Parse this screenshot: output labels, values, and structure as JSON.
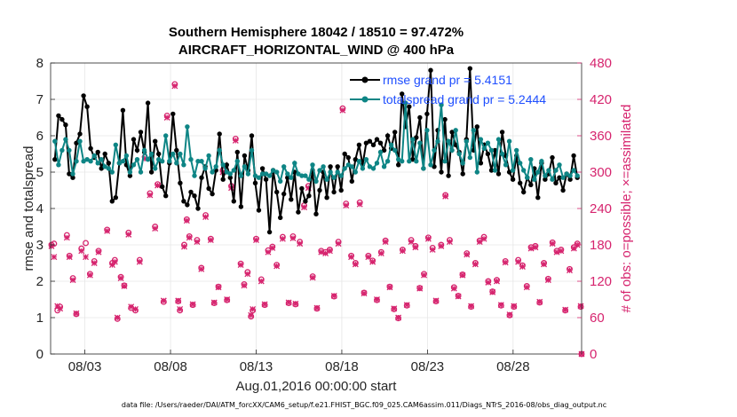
{
  "chart_data": {
    "type": "line",
    "title_line1": "Southern Hemisphere 18042 / 18510 = 97.472%",
    "title_line2": "AIRCRAFT_HORIZONTAL_WIND @ 400 hPa",
    "xlabel": "Aug.01,2016 00:00:00 start",
    "ylabel_left": "rmse and totalspread",
    "ylabel_right": "# of obs: o=possible; ×=assimilated",
    "footer": "data file: /Users/raeder/DAI/ATM_forcXX/CAM6_setup/f.e21.FHIST_BGC.f09_025.CAM6assim.011/Diags_NTrS_2016-08/obs_diag_output.nc",
    "xlim": [
      1.0,
      32.0
    ],
    "ylim_left": [
      0,
      8
    ],
    "ylim_right": [
      0,
      480
    ],
    "x_ticks": [
      {
        "x": 3,
        "label": "08/03"
      },
      {
        "x": 8,
        "label": "08/08"
      },
      {
        "x": 13,
        "label": "08/13"
      },
      {
        "x": 18,
        "label": "08/18"
      },
      {
        "x": 23,
        "label": "08/23"
      },
      {
        "x": 28,
        "label": "08/28"
      }
    ],
    "y_ticks_left": [
      "0",
      "1",
      "2",
      "3",
      "4",
      "5",
      "6",
      "7",
      "8"
    ],
    "y_ticks_right": [
      "0",
      "60",
      "120",
      "180",
      "240",
      "300",
      "360",
      "420",
      "480"
    ],
    "colors": {
      "rmse": "#000000",
      "totalspread": "#0e8585",
      "obs": "#d6246e",
      "legend_text": "#1f4fff",
      "grid": "#e6e6e6"
    },
    "series": [
      {
        "name": "rmse grand pr = 5.4151",
        "axis": "left",
        "values": [
          5.35,
          6.55,
          6.45,
          6.3,
          4.95,
          4.85,
          5.8,
          6.05,
          7.1,
          6.8,
          5.65,
          5.4,
          5.55,
          5.1,
          5.5,
          5.25,
          4.2,
          4.3,
          5.25,
          6.7,
          5.2,
          4.9,
          5.9,
          5.6,
          6.1,
          5.55,
          6.9,
          5.0,
          5.85,
          5.5,
          4.6,
          4.35,
          5.25,
          6.6,
          5.6,
          4.7,
          4.2,
          4.1,
          4.45,
          4.35,
          4.0,
          4.85,
          5.15,
          4.55,
          4.4,
          5.05,
          6.05,
          4.8,
          5.2,
          4.85,
          4.2,
          5.55,
          4.05,
          5.45,
          5.05,
          6.0,
          4.7,
          3.95,
          5.1,
          4.8,
          3.35,
          5.05,
          4.45,
          3.75,
          4.4,
          4.85,
          4.25,
          5.0,
          3.9,
          4.55,
          4.2,
          4.35,
          5.05,
          3.85,
          4.5,
          5.0,
          4.3,
          5.15,
          4.45,
          5.15,
          4.5,
          5.5,
          5.4,
          4.75,
          5.35,
          5.75,
          5.2,
          5.8,
          5.85,
          5.75,
          5.9,
          5.8,
          5.6,
          6.0,
          5.65,
          6.1,
          5.2,
          7.15,
          6.25,
          6.8,
          5.35,
          5.95,
          6.5,
          5.1,
          6.6,
          7.8,
          5.15,
          6.15,
          5.0,
          6.45,
          4.9,
          6.1,
          5.75,
          5.55,
          4.95,
          5.9,
          7.85,
          5.6,
          6.25,
          5.25,
          5.75,
          5.5,
          5.05,
          5.6,
          4.95,
          6.1,
          5.45,
          5.0,
          4.8,
          5.45,
          4.7,
          4.45,
          4.85,
          4.65,
          5.1,
          4.3,
          5.25,
          4.8,
          4.95,
          5.4,
          4.7,
          4.85,
          4.5,
          4.95,
          4.8,
          5.45,
          4.85
        ]
      },
      {
        "name": "totalspread grand pr = 5.2444",
        "axis": "left",
        "values": [
          5.85,
          5.2,
          5.6,
          5.9,
          5.6,
          4.95,
          5.3,
          5.85,
          5.3,
          5.35,
          5.3,
          5.45,
          5.25,
          5.35,
          5.15,
          5.1,
          5.0,
          5.75,
          5.25,
          5.3,
          5.45,
          5.0,
          5.2,
          5.35,
          5.0,
          5.6,
          5.35,
          5.5,
          5.1,
          5.35,
          5.3,
          6.0,
          5.3,
          5.5,
          5.25,
          5.5,
          5.2,
          6.25,
          5.35,
          4.9,
          5.3,
          5.3,
          5.1,
          5.45,
          5.0,
          5.15,
          5.6,
          5.2,
          5.0,
          4.95,
          5.05,
          5.3,
          4.9,
          5.15,
          4.95,
          5.6,
          4.9,
          4.85,
          4.95,
          4.95,
          4.9,
          5.05,
          5.0,
          4.75,
          5.15,
          4.95,
          4.85,
          5.25,
          4.95,
          4.9,
          4.9,
          4.8,
          5.2,
          4.75,
          5.05,
          5.15,
          4.8,
          5.0,
          4.85,
          5.0,
          4.9,
          5.1,
          5.2,
          5.15,
          5.0,
          5.3,
          5.1,
          5.35,
          5.15,
          5.1,
          5.25,
          5.55,
          5.15,
          5.3,
          5.75,
          5.6,
          5.35,
          5.3,
          6.9,
          5.3,
          5.9,
          5.3,
          5.8,
          5.1,
          6.15,
          5.2,
          5.6,
          5.85,
          6.85,
          5.3,
          5.85,
          5.6,
          6.15,
          5.5,
          5.25,
          5.85,
          5.4,
          6.15,
          5.0,
          5.9,
          5.65,
          5.8,
          5.6,
          5.05,
          5.9,
          5.5,
          5.2,
          5.85,
          5.05,
          5.6,
          5.25,
          5.05,
          4.85,
          5.35,
          4.8,
          5.0,
          5.3,
          4.9,
          5.05,
          4.8,
          5.05,
          5.2,
          4.85,
          4.95,
          4.9,
          5.05,
          4.9
        ]
      }
    ],
    "obs_possible": [
      [
        1.05,
        180
      ],
      [
        1.2,
        182
      ],
      [
        1.4,
        72
      ],
      [
        1.55,
        78
      ],
      [
        1.95,
        196
      ],
      [
        2.1,
        162
      ],
      [
        2.3,
        125
      ],
      [
        2.5,
        66
      ],
      [
        2.8,
        174
      ],
      [
        3.05,
        183
      ],
      [
        3.3,
        132
      ],
      [
        3.55,
        153
      ],
      [
        3.8,
        170
      ],
      [
        4.3,
        205
      ],
      [
        4.6,
        150
      ],
      [
        4.75,
        155
      ],
      [
        4.9,
        58
      ],
      [
        5.1,
        127
      ],
      [
        5.3,
        113
      ],
      [
        5.55,
        200
      ],
      [
        5.7,
        76
      ],
      [
        5.95,
        72
      ],
      [
        6.2,
        155
      ],
      [
        6.5,
        325
      ],
      [
        6.8,
        265
      ],
      [
        7.1,
        210
      ],
      [
        7.25,
        280
      ],
      [
        7.6,
        86
      ],
      [
        7.8,
        393
      ],
      [
        8.25,
        445
      ],
      [
        8.45,
        87
      ],
      [
        8.55,
        72
      ],
      [
        8.8,
        180
      ],
      [
        8.95,
        222
      ],
      [
        9.1,
        194
      ],
      [
        9.3,
        81
      ],
      [
        9.55,
        188
      ],
      [
        9.8,
        142
      ],
      [
        10.05,
        229
      ],
      [
        10.35,
        190
      ],
      [
        10.55,
        84
      ],
      [
        10.8,
        111
      ],
      [
        11.05,
        303
      ],
      [
        11.3,
        89
      ],
      [
        11.55,
        277
      ],
      [
        11.8,
        355
      ],
      [
        12.1,
        149
      ],
      [
        12.3,
        115
      ],
      [
        12.5,
        135
      ],
      [
        12.7,
        62
      ],
      [
        12.8,
        72
      ],
      [
        13.0,
        190
      ],
      [
        13.3,
        123
      ],
      [
        13.5,
        81
      ],
      [
        13.7,
        171
      ],
      [
        13.95,
        177
      ],
      [
        14.2,
        147
      ],
      [
        14.55,
        193
      ],
      [
        14.9,
        84
      ],
      [
        15.15,
        194
      ],
      [
        15.3,
        82
      ],
      [
        15.55,
        185
      ],
      [
        15.8,
        245
      ],
      [
        16.05,
        277
      ],
      [
        16.3,
        128
      ],
      [
        16.55,
        75
      ],
      [
        16.8,
        170
      ],
      [
        17.05,
        168
      ],
      [
        17.3,
        172
      ],
      [
        17.55,
        95
      ],
      [
        17.8,
        185
      ],
      [
        18.05,
        405
      ],
      [
        18.25,
        248
      ],
      [
        18.55,
        162
      ],
      [
        18.8,
        150
      ],
      [
        19.05,
        250
      ],
      [
        19.3,
        101
      ],
      [
        19.55,
        162
      ],
      [
        19.8,
        154
      ],
      [
        20.05,
        89
      ],
      [
        20.3,
        168
      ],
      [
        20.55,
        187
      ],
      [
        20.8,
        111
      ],
      [
        21.05,
        74
      ],
      [
        21.3,
        59
      ],
      [
        21.55,
        172
      ],
      [
        21.8,
        80
      ],
      [
        22.05,
        188
      ],
      [
        22.3,
        178
      ],
      [
        22.55,
        109
      ],
      [
        22.8,
        132
      ],
      [
        23.05,
        192
      ],
      [
        23.3,
        175
      ],
      [
        23.5,
        87
      ],
      [
        23.8,
        180
      ],
      [
        24.05,
        262
      ],
      [
        24.3,
        188
      ],
      [
        24.55,
        110
      ],
      [
        24.8,
        96
      ],
      [
        25.05,
        131
      ],
      [
        25.3,
        166
      ],
      [
        25.55,
        78
      ],
      [
        25.8,
        150
      ],
      [
        26.05,
        187
      ],
      [
        26.3,
        193
      ],
      [
        26.55,
        120
      ],
      [
        26.8,
        103
      ],
      [
        27.05,
        122
      ],
      [
        27.3,
        80
      ],
      [
        27.55,
        153
      ],
      [
        27.8,
        64
      ],
      [
        28.05,
        78
      ],
      [
        28.3,
        155
      ],
      [
        28.55,
        146
      ],
      [
        28.8,
        112
      ],
      [
        29.05,
        176
      ],
      [
        29.3,
        178
      ],
      [
        29.55,
        85
      ],
      [
        29.8,
        150
      ],
      [
        30.05,
        124
      ],
      [
        30.3,
        184
      ],
      [
        30.55,
        170
      ],
      [
        30.8,
        172
      ],
      [
        31.05,
        72
      ],
      [
        31.3,
        140
      ],
      [
        31.55,
        176
      ],
      [
        31.75,
        182
      ],
      [
        31.95,
        78
      ],
      [
        32.0,
        0
      ]
    ],
    "obs_assimilated": [
      [
        1.05,
        178
      ],
      [
        1.2,
        160
      ],
      [
        1.4,
        79
      ],
      [
        1.55,
        75
      ],
      [
        1.95,
        192
      ],
      [
        2.1,
        160
      ],
      [
        2.3,
        122
      ],
      [
        2.5,
        67
      ],
      [
        2.8,
        170
      ],
      [
        3.05,
        160
      ],
      [
        3.3,
        130
      ],
      [
        3.55,
        150
      ],
      [
        3.8,
        168
      ],
      [
        4.3,
        203
      ],
      [
        4.6,
        147
      ],
      [
        4.75,
        152
      ],
      [
        4.9,
        60
      ],
      [
        5.1,
        125
      ],
      [
        5.3,
        112
      ],
      [
        5.55,
        197
      ],
      [
        5.7,
        78
      ],
      [
        5.95,
        74
      ],
      [
        6.2,
        152
      ],
      [
        6.5,
        322
      ],
      [
        6.8,
        262
      ],
      [
        7.1,
        207
      ],
      [
        7.25,
        278
      ],
      [
        7.6,
        88
      ],
      [
        7.8,
        390
      ],
      [
        8.25,
        442
      ],
      [
        8.45,
        88
      ],
      [
        8.55,
        74
      ],
      [
        8.8,
        177
      ],
      [
        8.95,
        220
      ],
      [
        9.1,
        192
      ],
      [
        9.3,
        82
      ],
      [
        9.55,
        185
      ],
      [
        9.8,
        140
      ],
      [
        10.05,
        226
      ],
      [
        10.35,
        188
      ],
      [
        10.55,
        85
      ],
      [
        10.8,
        110
      ],
      [
        11.05,
        300
      ],
      [
        11.3,
        90
      ],
      [
        11.55,
        274
      ],
      [
        11.8,
        352
      ],
      [
        12.1,
        147
      ],
      [
        12.3,
        113
      ],
      [
        12.5,
        132
      ],
      [
        12.7,
        64
      ],
      [
        12.8,
        74
      ],
      [
        13.0,
        188
      ],
      [
        13.3,
        120
      ],
      [
        13.5,
        82
      ],
      [
        13.7,
        168
      ],
      [
        13.95,
        175
      ],
      [
        14.2,
        145
      ],
      [
        14.55,
        190
      ],
      [
        14.9,
        85
      ],
      [
        15.15,
        191
      ],
      [
        15.3,
        83
      ],
      [
        15.55,
        182
      ],
      [
        15.8,
        242
      ],
      [
        16.05,
        274
      ],
      [
        16.3,
        126
      ],
      [
        16.55,
        76
      ],
      [
        16.8,
        168
      ],
      [
        17.05,
        166
      ],
      [
        17.3,
        170
      ],
      [
        17.55,
        96
      ],
      [
        17.8,
        182
      ],
      [
        18.05,
        402
      ],
      [
        18.25,
        245
      ],
      [
        18.55,
        160
      ],
      [
        18.8,
        148
      ],
      [
        19.05,
        247
      ],
      [
        19.3,
        100
      ],
      [
        19.55,
        160
      ],
      [
        19.8,
        152
      ],
      [
        20.05,
        90
      ],
      [
        20.3,
        166
      ],
      [
        20.55,
        185
      ],
      [
        20.8,
        110
      ],
      [
        21.05,
        75
      ],
      [
        21.3,
        60
      ],
      [
        21.55,
        170
      ],
      [
        21.8,
        81
      ],
      [
        22.05,
        185
      ],
      [
        22.3,
        176
      ],
      [
        22.55,
        108
      ],
      [
        22.8,
        130
      ],
      [
        23.05,
        190
      ],
      [
        23.3,
        172
      ],
      [
        23.5,
        88
      ],
      [
        23.8,
        178
      ],
      [
        24.05,
        260
      ],
      [
        24.3,
        185
      ],
      [
        24.55,
        108
      ],
      [
        24.8,
        95
      ],
      [
        25.05,
        130
      ],
      [
        25.3,
        164
      ],
      [
        25.55,
        79
      ],
      [
        25.8,
        148
      ],
      [
        26.05,
        185
      ],
      [
        26.3,
        190
      ],
      [
        26.55,
        118
      ],
      [
        26.8,
        102
      ],
      [
        27.05,
        120
      ],
      [
        27.3,
        81
      ],
      [
        27.55,
        151
      ],
      [
        27.8,
        65
      ],
      [
        28.05,
        79
      ],
      [
        28.3,
        152
      ],
      [
        28.55,
        144
      ],
      [
        28.8,
        110
      ],
      [
        29.05,
        174
      ],
      [
        29.3,
        176
      ],
      [
        29.55,
        86
      ],
      [
        29.8,
        148
      ],
      [
        30.05,
        122
      ],
      [
        30.3,
        182
      ],
      [
        30.55,
        168
      ],
      [
        30.8,
        170
      ],
      [
        31.05,
        73
      ],
      [
        31.3,
        138
      ],
      [
        31.55,
        174
      ],
      [
        31.75,
        180
      ],
      [
        31.95,
        79
      ],
      [
        32.0,
        0
      ]
    ]
  }
}
